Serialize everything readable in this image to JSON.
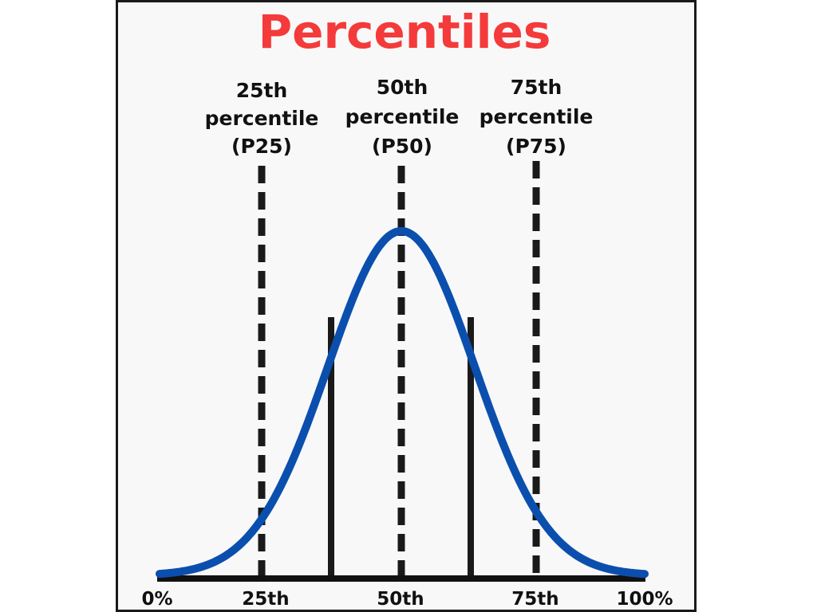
{
  "title": "Percentiles",
  "percentile_markers": [
    {
      "line1": "25th",
      "line2": "percentile",
      "line3": "(P25)",
      "value": 25
    },
    {
      "line1": "50th",
      "line2": "percentile",
      "line3": "(P50)",
      "value": 50
    },
    {
      "line1": "75th",
      "line2": "percentile",
      "line3": "(P75)",
      "value": 75
    }
  ],
  "axis_labels": [
    "0%",
    "25th",
    "50th",
    "75th",
    "100%"
  ],
  "colors": {
    "title": "#f43a3a",
    "curve": "#0b4fae",
    "lines": "#1a1a1a",
    "axis": "#111111"
  }
}
